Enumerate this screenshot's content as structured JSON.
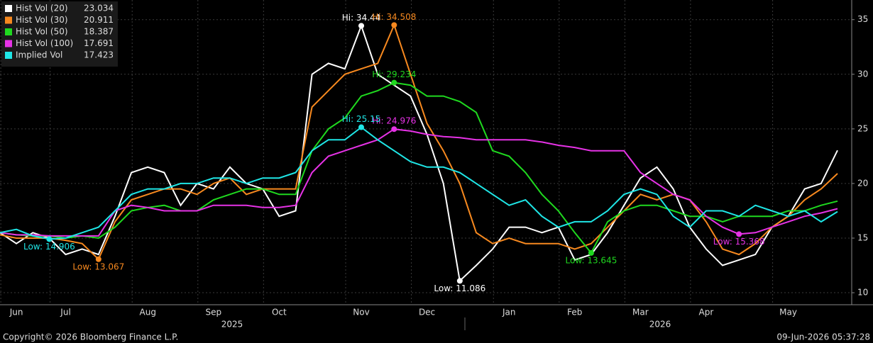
{
  "chart_data": {
    "type": "line",
    "categories": [
      null,
      "Jun",
      null,
      null,
      "Jul",
      null,
      null,
      null,
      null,
      "Aug",
      null,
      null,
      null,
      "Sep",
      null,
      null,
      null,
      "Oct",
      null,
      null,
      null,
      null,
      "Nov",
      null,
      null,
      null,
      "Dec",
      null,
      null,
      null,
      null,
      "Jan",
      null,
      null,
      null,
      "Feb",
      null,
      null,
      null,
      "Mar",
      null,
      null,
      null,
      "Apr",
      null,
      null,
      null,
      null,
      "May",
      null,
      null,
      null
    ],
    "years": [
      "2025",
      "2026"
    ],
    "ylim": [
      8.9,
      36.8
    ],
    "yticks": [
      10,
      15,
      20,
      25,
      30,
      35
    ],
    "grid": true,
    "series": [
      {
        "name": "Hist Vol (20)",
        "color": "#ffffff",
        "values": [
          15.5,
          14.5,
          15.5,
          15,
          13.5,
          14,
          13.5,
          17,
          21,
          21.5,
          21,
          18,
          20,
          19.5,
          21.5,
          20,
          19.5,
          17,
          17.5,
          30,
          31,
          30.5,
          34.44,
          30,
          29,
          28,
          24.5,
          20,
          11.086,
          12.5,
          14,
          16,
          16,
          15.5,
          16,
          13,
          13.5,
          15.5,
          18,
          20.5,
          21.5,
          19.5,
          16,
          14,
          12.5,
          13,
          13.5,
          16,
          17,
          19.5,
          20,
          23.034
        ],
        "annotations": [
          {
            "value": 34.44,
            "label": "Hi: 34.44"
          },
          {
            "value": 11.086,
            "label": "Low: 11.086"
          }
        ]
      },
      {
        "name": "Hist Vol (30)",
        "color": "#f7891f",
        "values": [
          15.3,
          15,
          15,
          15,
          14.8,
          14.5,
          13.067,
          16.5,
          18.5,
          19,
          19.5,
          19.5,
          19,
          20,
          20.5,
          19,
          19.5,
          19.5,
          19.5,
          27,
          28.5,
          30,
          30.5,
          31,
          34.508,
          30,
          25.5,
          23,
          20,
          15.5,
          14.5,
          15,
          14.5,
          14.5,
          14.5,
          14,
          14.5,
          16,
          17.5,
          19,
          18.5,
          19,
          18.5,
          16.5,
          14,
          13.5,
          14.5,
          16,
          17,
          18.5,
          19.5,
          20.911
        ],
        "annotations": [
          {
            "value": 34.508,
            "label": "Hi: 34.508"
          },
          {
            "value": 13.067,
            "label": "Low: 13.067"
          }
        ]
      },
      {
        "name": "Hist Vol (50)",
        "color": "#1fd91f",
        "values": [
          15.5,
          15.3,
          15.2,
          15.2,
          15,
          15.2,
          15,
          16,
          17.5,
          17.8,
          18,
          17.5,
          17.5,
          18.5,
          19,
          19.5,
          19.5,
          19,
          19,
          23,
          25,
          26,
          28,
          28.5,
          29.234,
          29,
          28,
          28,
          27.5,
          26.5,
          23,
          22.5,
          21,
          19,
          17.5,
          15.5,
          13.645,
          16.5,
          17.5,
          18,
          18,
          17.5,
          17,
          17,
          16.5,
          17,
          17,
          17,
          17.5,
          17.5,
          18,
          18.387
        ],
        "annotations": [
          {
            "value": 29.234,
            "label": "Hi: 29.234"
          },
          {
            "value": 13.645,
            "label": "Low: 13.645"
          }
        ]
      },
      {
        "name": "Hist Vol (100)",
        "color": "#e632e6",
        "values": [
          15.5,
          15.3,
          15.3,
          15.2,
          15.2,
          15.2,
          15.2,
          17.5,
          18,
          17.8,
          17.5,
          17.5,
          17.5,
          18,
          18,
          18,
          17.8,
          17.8,
          18,
          21,
          22.5,
          23,
          23.5,
          24,
          24.976,
          24.8,
          24.5,
          24.3,
          24.2,
          24,
          24,
          24,
          24,
          23.8,
          23.5,
          23.3,
          23,
          23,
          23,
          21,
          20,
          19,
          18.5,
          17,
          16,
          15.368,
          15.5,
          16,
          16.5,
          17,
          17.3,
          17.691
        ],
        "annotations": [
          {
            "value": 24.976,
            "label": "Hi: 24.976"
          },
          {
            "value": 15.368,
            "label": "Low: 15.368"
          }
        ]
      },
      {
        "name": "Implied Vol",
        "color": "#1fe6e6",
        "values": [
          15.5,
          15.8,
          15.2,
          14.906,
          15,
          15.5,
          16,
          17.5,
          19,
          19.5,
          19.5,
          20,
          20,
          20.5,
          20.5,
          20,
          20.5,
          20.5,
          21,
          23,
          24,
          24,
          25.15,
          24,
          23,
          22,
          21.5,
          21.5,
          21,
          20,
          19,
          18,
          18.5,
          17,
          16,
          16.5,
          16.5,
          17.5,
          19,
          19.5,
          19,
          17,
          16,
          17.5,
          17.5,
          17,
          18,
          17.5,
          17,
          17.5,
          16.5,
          17.423
        ],
        "annotations": [
          {
            "value": 25.15,
            "label": "Hi: 25.15"
          },
          {
            "value": 14.906,
            "label": "Low: 14.906"
          }
        ]
      }
    ],
    "copyright": "Copyright© 2026 Bloomberg Finance L.P.",
    "timestamp": "09-Jun-2026 05:37:28"
  }
}
